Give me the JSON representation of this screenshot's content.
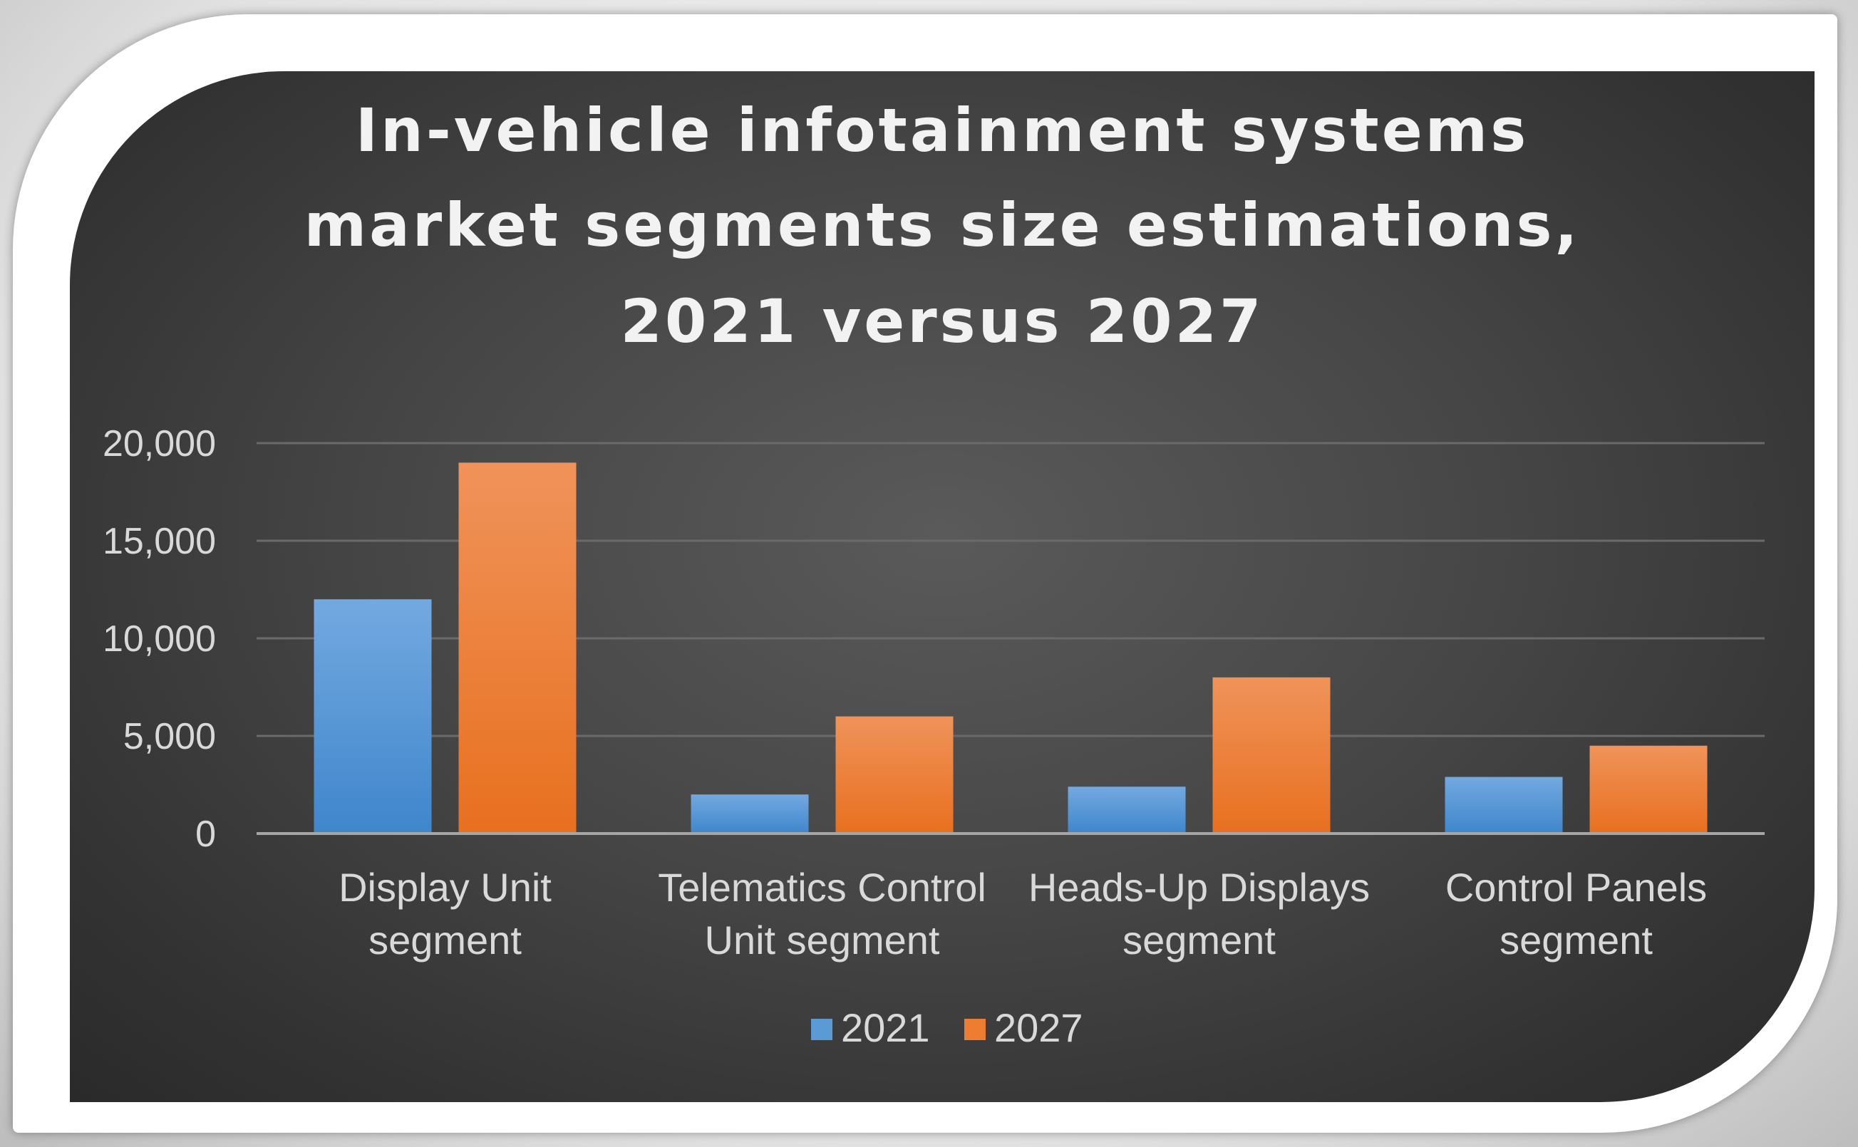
{
  "chart_data": {
    "type": "bar",
    "title_lines": [
      "In-vehicle infotainment systems",
      "market segments size estimations,",
      "2021 versus 2027"
    ],
    "categories": [
      [
        "Display Unit",
        "segment"
      ],
      [
        "Telematics Control",
        "Unit segment"
      ],
      [
        "Heads-Up Displays",
        "segment"
      ],
      [
        "Control Panels",
        "segment"
      ]
    ],
    "series": [
      {
        "name": "2021",
        "color": "#5b9bd5",
        "values": [
          12000,
          2000,
          2400,
          2900
        ]
      },
      {
        "name": "2027",
        "color": "#ed7d31",
        "values": [
          19000,
          6000,
          8000,
          4500
        ]
      }
    ],
    "ylim": [
      0,
      20000
    ],
    "yticks": [
      0,
      5000,
      10000,
      15000,
      20000
    ],
    "ytick_labels": [
      "0",
      "5,000",
      "10,000",
      "15,000",
      "20,000"
    ],
    "legend_position": "bottom",
    "grid": true
  }
}
